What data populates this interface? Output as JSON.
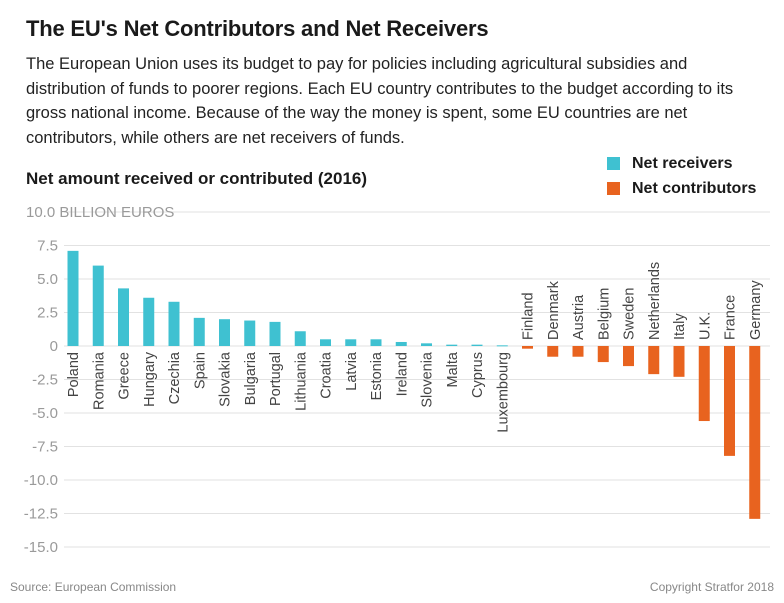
{
  "header": {
    "title": "The EU's Net Contributors and Net Receivers",
    "description": "The European Union uses its budget to pay for policies including agricultural subsidies and distribution of funds to poorer regions. Each EU country contributes to the budget according to its gross national income. Because of the way the money is spent, some EU countries are net contributors, while others are net receivers of funds."
  },
  "chart_data": {
    "type": "bar",
    "title": "Net amount received or contributed (2016)",
    "ylabel": "BILLION EUROS",
    "ylim": [
      -15,
      10
    ],
    "yticks": [
      10,
      7.5,
      5,
      2.5,
      0,
      -2.5,
      -5,
      -7.5,
      -10,
      -12.5,
      -15
    ],
    "ytick_labels": [
      "10.0 BILLION EUROS",
      "7.5",
      "5.0",
      "2.5",
      "0",
      "-2.5",
      "-5.0",
      "-7.5",
      "-10.0",
      "-12.5",
      "-15.0"
    ],
    "grid": true,
    "legend": [
      {
        "label": "Net receivers",
        "color": "#3fc1d1"
      },
      {
        "label": "Net contributors",
        "color": "#e8631f"
      }
    ],
    "categories": [
      "Poland",
      "Romania",
      "Greece",
      "Hungary",
      "Czechia",
      "Spain",
      "Slovakia",
      "Bulgaria",
      "Portugal",
      "Lithuania",
      "Croatia",
      "Latvia",
      "Estonia",
      "Ireland",
      "Slovenia",
      "Malta",
      "Cyprus",
      "Luxembourg",
      "Finland",
      "Denmark",
      "Austria",
      "Belgium",
      "Sweden",
      "Netherlands",
      "Italy",
      "U.K.",
      "France",
      "Germany"
    ],
    "values": [
      7.1,
      6.0,
      4.3,
      3.6,
      3.3,
      2.1,
      2.0,
      1.9,
      1.8,
      1.1,
      0.5,
      0.5,
      0.5,
      0.3,
      0.2,
      0.1,
      0.1,
      0.05,
      -0.2,
      -0.8,
      -0.8,
      -1.2,
      -1.5,
      -2.1,
      -2.3,
      -5.6,
      -8.2,
      -12.9
    ]
  },
  "footer": {
    "source": "Source: European Commission",
    "copyright": "Copyright Stratfor 2018"
  }
}
